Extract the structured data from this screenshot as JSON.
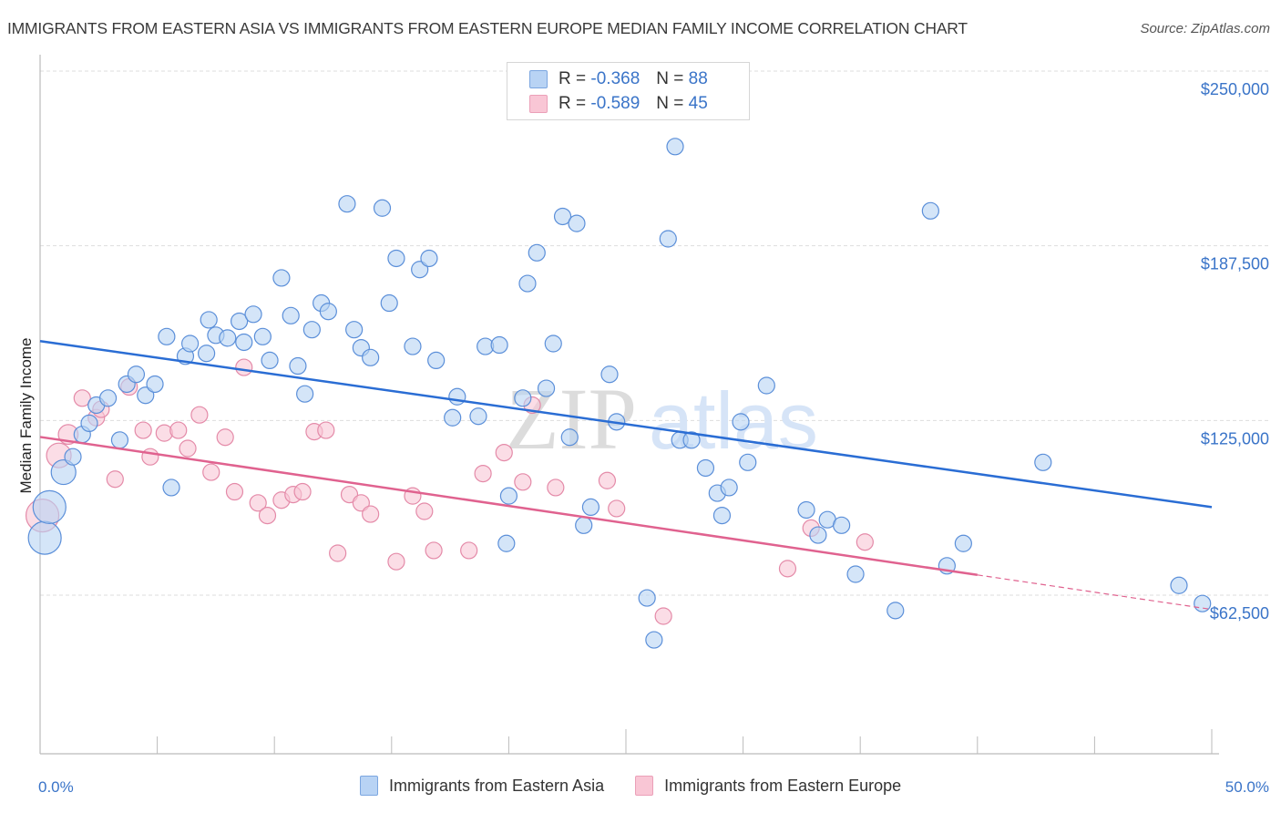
{
  "header": {
    "title": "IMMIGRANTS FROM EASTERN ASIA VS IMMIGRANTS FROM EASTERN EUROPE MEDIAN FAMILY INCOME CORRELATION CHART",
    "source": "Source: ZipAtlas.com"
  },
  "colors": {
    "series_a_fill": "#b8d3f4",
    "series_a_stroke": "#5b8fd9",
    "series_a_line": "#2a6dd4",
    "series_b_fill": "#f9c6d5",
    "series_b_stroke": "#e48aa8",
    "series_b_line": "#e0628f",
    "tick_text": "#3a74c8",
    "grid": "#dddddd"
  },
  "legend": {
    "rows": [
      {
        "r_label": "R =",
        "r_value": "-0.368",
        "n_label": "N =",
        "n_value": "88"
      },
      {
        "r_label": "R =",
        "r_value": "-0.589",
        "n_label": "N =",
        "n_value": "45"
      }
    ]
  },
  "watermark": {
    "part1": "ZIP",
    "part2": "atlas"
  },
  "chart_data": {
    "type": "scatter",
    "title": "IMMIGRANTS FROM EASTERN ASIA VS IMMIGRANTS FROM EASTERN EUROPE MEDIAN FAMILY INCOME CORRELATION CHART",
    "xlabel": "",
    "ylabel": "Median Family Income",
    "xlim": [
      0,
      50
    ],
    "ylim": [
      0,
      255000
    ],
    "x_tick_labels": [
      "0.0%",
      "50.0%"
    ],
    "y_ticks": [
      62500,
      125000,
      187500,
      250000
    ],
    "y_tick_labels": [
      "$62,500",
      "$125,000",
      "$187,500",
      "$250,000"
    ],
    "grid": true,
    "legend_placement": "top-center",
    "bottom_legend": [
      "Immigrants from Eastern Asia",
      "Immigrants from Eastern Europe"
    ],
    "series": [
      {
        "name": "Immigrants from Eastern Asia",
        "R": -0.368,
        "N": 88,
        "trend": {
          "x": [
            0,
            50
          ],
          "y": [
            153400,
            94000
          ]
        },
        "points": [
          [
            0.2,
            83000,
            2
          ],
          [
            0.4,
            94000,
            2
          ],
          [
            1.0,
            106500,
            1.5
          ],
          [
            1.4,
            112000
          ],
          [
            1.8,
            120000
          ],
          [
            2.1,
            124000
          ],
          [
            2.4,
            130500
          ],
          [
            2.9,
            133000
          ],
          [
            3.4,
            118000
          ],
          [
            3.7,
            138000
          ],
          [
            4.1,
            141500
          ],
          [
            4.5,
            134000
          ],
          [
            4.9,
            138000
          ],
          [
            5.4,
            155000
          ],
          [
            5.6,
            101000
          ],
          [
            6.2,
            148000
          ],
          [
            6.4,
            152500
          ],
          [
            7.1,
            149000
          ],
          [
            7.2,
            161000
          ],
          [
            7.5,
            155500
          ],
          [
            8.0,
            154500
          ],
          [
            8.5,
            160500
          ],
          [
            8.7,
            153000
          ],
          [
            9.1,
            163000
          ],
          [
            9.5,
            155000
          ],
          [
            9.8,
            146500
          ],
          [
            10.3,
            176000
          ],
          [
            10.7,
            162500
          ],
          [
            11.0,
            144500
          ],
          [
            11.3,
            134500
          ],
          [
            11.6,
            157500
          ],
          [
            12.0,
            167000
          ],
          [
            12.3,
            164000
          ],
          [
            13.1,
            202500
          ],
          [
            13.4,
            157500
          ],
          [
            13.7,
            151000
          ],
          [
            14.1,
            147500
          ],
          [
            14.6,
            201000
          ],
          [
            14.9,
            167000
          ],
          [
            15.2,
            183000
          ],
          [
            15.9,
            151500
          ],
          [
            16.2,
            179000
          ],
          [
            16.6,
            183000
          ],
          [
            16.9,
            146500
          ],
          [
            17.6,
            126000
          ],
          [
            17.8,
            133500
          ],
          [
            18.7,
            126500
          ],
          [
            19.0,
            151500
          ],
          [
            19.6,
            152000
          ],
          [
            19.9,
            81000
          ],
          [
            20.0,
            98000
          ],
          [
            20.6,
            133000
          ],
          [
            20.8,
            174000
          ],
          [
            21.2,
            185000
          ],
          [
            21.6,
            136500
          ],
          [
            21.9,
            152500
          ],
          [
            22.3,
            198000
          ],
          [
            22.6,
            119000
          ],
          [
            22.9,
            195500
          ],
          [
            23.2,
            87500
          ],
          [
            23.5,
            94000
          ],
          [
            24.3,
            141500
          ],
          [
            24.6,
            124500
          ],
          [
            25.9,
            61500
          ],
          [
            26.2,
            46500
          ],
          [
            26.8,
            190000
          ],
          [
            27.1,
            223000
          ],
          [
            27.3,
            118000
          ],
          [
            27.8,
            118000
          ],
          [
            28.4,
            108000
          ],
          [
            28.9,
            99000
          ],
          [
            29.1,
            91000
          ],
          [
            29.4,
            101000
          ],
          [
            29.9,
            124500
          ],
          [
            30.2,
            110000
          ],
          [
            31.0,
            137500
          ],
          [
            32.7,
            93000
          ],
          [
            33.2,
            84000
          ],
          [
            33.6,
            89500
          ],
          [
            34.2,
            87500
          ],
          [
            34.8,
            70000
          ],
          [
            36.5,
            57000
          ],
          [
            38.0,
            200000
          ],
          [
            38.7,
            73000
          ],
          [
            39.4,
            81000
          ],
          [
            42.8,
            110000
          ],
          [
            48.6,
            66000
          ],
          [
            49.6,
            59500
          ]
        ]
      },
      {
        "name": "Immigrants from Eastern Europe",
        "R": -0.589,
        "N": 45,
        "trend": {
          "x": [
            0,
            50
          ],
          "y": [
            119100,
            57400
          ],
          "solid_until_x": 40
        },
        "points": [
          [
            0.1,
            91000,
            2
          ],
          [
            0.8,
            112500,
            1.5
          ],
          [
            1.2,
            120000,
            1.2
          ],
          [
            1.8,
            133000
          ],
          [
            2.4,
            126000
          ],
          [
            2.6,
            129000
          ],
          [
            3.2,
            104000
          ],
          [
            3.8,
            137000
          ],
          [
            4.4,
            121500
          ],
          [
            4.7,
            112000
          ],
          [
            5.3,
            120500
          ],
          [
            5.9,
            121500
          ],
          [
            6.3,
            115000
          ],
          [
            6.8,
            127000
          ],
          [
            7.3,
            106500
          ],
          [
            7.9,
            119000
          ],
          [
            8.3,
            99500
          ],
          [
            8.7,
            144000
          ],
          [
            9.3,
            95500
          ],
          [
            9.7,
            91000
          ],
          [
            10.3,
            96500
          ],
          [
            10.8,
            98500
          ],
          [
            11.2,
            99500
          ],
          [
            11.7,
            121000
          ],
          [
            12.2,
            121500
          ],
          [
            12.7,
            77500
          ],
          [
            13.2,
            98500
          ],
          [
            13.7,
            95500
          ],
          [
            14.1,
            91500
          ],
          [
            15.2,
            74500
          ],
          [
            15.9,
            98000
          ],
          [
            16.4,
            92500
          ],
          [
            16.8,
            78500
          ],
          [
            18.3,
            78500
          ],
          [
            18.9,
            106000
          ],
          [
            19.8,
            113500
          ],
          [
            20.6,
            103000
          ],
          [
            21.0,
            130500
          ],
          [
            22.0,
            101000
          ],
          [
            24.2,
            103500
          ],
          [
            24.6,
            93500
          ],
          [
            26.6,
            55000
          ],
          [
            31.9,
            72000
          ],
          [
            32.9,
            86500
          ],
          [
            35.2,
            81500
          ]
        ]
      }
    ]
  }
}
